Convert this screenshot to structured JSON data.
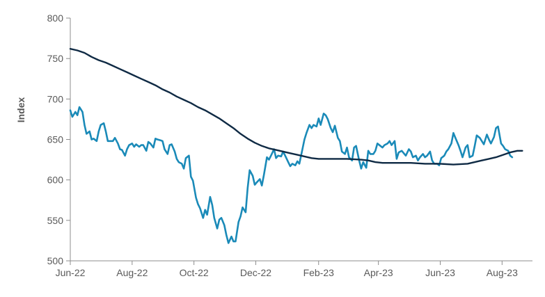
{
  "chart_data": {
    "type": "line",
    "title": "",
    "xlabel": "",
    "ylabel": "Index",
    "ylim": [
      500,
      800
    ],
    "yticks": [
      "500",
      "550",
      "600",
      "650",
      "700",
      "750",
      "800"
    ],
    "xticks": [
      "Jun-22",
      "Aug-22",
      "Oct-22",
      "Dec-22",
      "Feb-23",
      "Apr-23",
      "Jun-23",
      "Aug-23"
    ],
    "x_range": [
      "2022-06-01",
      "2023-08-31"
    ],
    "grid": false,
    "legend": "none",
    "series": [
      {
        "color": "#1a8ab8",
        "points": [
          [
            "2022-06-01",
            686
          ],
          [
            "2022-06-03",
            678
          ],
          [
            "2022-06-06",
            684
          ],
          [
            "2022-06-08",
            680
          ],
          [
            "2022-06-10",
            690
          ],
          [
            "2022-06-13",
            684
          ],
          [
            "2022-06-15",
            668
          ],
          [
            "2022-06-17",
            657
          ],
          [
            "2022-06-20",
            660
          ],
          [
            "2022-06-22",
            650
          ],
          [
            "2022-06-24",
            651
          ],
          [
            "2022-06-27",
            648
          ],
          [
            "2022-06-29",
            660
          ],
          [
            "2022-07-01",
            668
          ],
          [
            "2022-07-04",
            670
          ],
          [
            "2022-07-06",
            660
          ],
          [
            "2022-07-08",
            648
          ],
          [
            "2022-07-11",
            648
          ],
          [
            "2022-07-13",
            648
          ],
          [
            "2022-07-15",
            652
          ],
          [
            "2022-07-18",
            645
          ],
          [
            "2022-07-20",
            638
          ],
          [
            "2022-07-22",
            637
          ],
          [
            "2022-07-25",
            630
          ],
          [
            "2022-07-27",
            638
          ],
          [
            "2022-07-29",
            643
          ],
          [
            "2022-08-01",
            645
          ],
          [
            "2022-08-03",
            641
          ],
          [
            "2022-08-05",
            644
          ],
          [
            "2022-08-08",
            641
          ],
          [
            "2022-08-10",
            643
          ],
          [
            "2022-08-12",
            643
          ],
          [
            "2022-08-15",
            636
          ],
          [
            "2022-08-17",
            647
          ],
          [
            "2022-08-19",
            645
          ],
          [
            "2022-08-22",
            640
          ],
          [
            "2022-08-24",
            651
          ],
          [
            "2022-08-26",
            650
          ],
          [
            "2022-08-29",
            649
          ],
          [
            "2022-08-31",
            648
          ],
          [
            "2022-09-02",
            638
          ],
          [
            "2022-09-05",
            632
          ],
          [
            "2022-09-07",
            643
          ],
          [
            "2022-09-09",
            644
          ],
          [
            "2022-09-12",
            635
          ],
          [
            "2022-09-14",
            626
          ],
          [
            "2022-09-16",
            622
          ],
          [
            "2022-09-19",
            620
          ],
          [
            "2022-09-21",
            614
          ],
          [
            "2022-09-23",
            627
          ],
          [
            "2022-09-26",
            630
          ],
          [
            "2022-09-28",
            604
          ],
          [
            "2022-09-30",
            599
          ],
          [
            "2022-10-03",
            578
          ],
          [
            "2022-10-05",
            570
          ],
          [
            "2022-10-07",
            565
          ],
          [
            "2022-10-10",
            553
          ],
          [
            "2022-10-12",
            563
          ],
          [
            "2022-10-14",
            557
          ],
          [
            "2022-10-17",
            579
          ],
          [
            "2022-10-19",
            569
          ],
          [
            "2022-10-21",
            553
          ],
          [
            "2022-10-24",
            540
          ],
          [
            "2022-10-26",
            551
          ],
          [
            "2022-10-28",
            553
          ],
          [
            "2022-10-31",
            544
          ],
          [
            "2022-11-02",
            532
          ],
          [
            "2022-11-04",
            522
          ],
          [
            "2022-11-07",
            530
          ],
          [
            "2022-11-09",
            524
          ],
          [
            "2022-11-11",
            524
          ],
          [
            "2022-11-14",
            548
          ],
          [
            "2022-11-16",
            555
          ],
          [
            "2022-11-18",
            566
          ],
          [
            "2022-11-21",
            560
          ],
          [
            "2022-11-23",
            590
          ],
          [
            "2022-11-25",
            612
          ],
          [
            "2022-11-28",
            605
          ],
          [
            "2022-11-30",
            594
          ],
          [
            "2022-12-02",
            597
          ],
          [
            "2022-12-05",
            601
          ],
          [
            "2022-12-07",
            593
          ],
          [
            "2022-12-09",
            606
          ],
          [
            "2022-12-12",
            628
          ],
          [
            "2022-12-14",
            625
          ],
          [
            "2022-12-16",
            630
          ],
          [
            "2022-12-19",
            638
          ],
          [
            "2022-12-21",
            627
          ],
          [
            "2022-12-23",
            630
          ],
          [
            "2022-12-26",
            629
          ],
          [
            "2022-12-28",
            635
          ],
          [
            "2022-12-30",
            630
          ],
          [
            "2023-01-02",
            622
          ],
          [
            "2023-01-04",
            617
          ],
          [
            "2023-01-06",
            620
          ],
          [
            "2023-01-09",
            618
          ],
          [
            "2023-01-11",
            623
          ],
          [
            "2023-01-13",
            620
          ],
          [
            "2023-01-16",
            638
          ],
          [
            "2023-01-18",
            650
          ],
          [
            "2023-01-20",
            658
          ],
          [
            "2023-01-23",
            668
          ],
          [
            "2023-01-25",
            664
          ],
          [
            "2023-01-27",
            668
          ],
          [
            "2023-01-30",
            666
          ],
          [
            "2023-02-01",
            676
          ],
          [
            "2023-02-03",
            668
          ],
          [
            "2023-02-06",
            682
          ],
          [
            "2023-02-08",
            680
          ],
          [
            "2023-02-10",
            675
          ],
          [
            "2023-02-13",
            664
          ],
          [
            "2023-02-15",
            659
          ],
          [
            "2023-02-17",
            667
          ],
          [
            "2023-02-20",
            652
          ],
          [
            "2023-02-22",
            648
          ],
          [
            "2023-02-24",
            635
          ],
          [
            "2023-02-27",
            632
          ],
          [
            "2023-03-01",
            640
          ],
          [
            "2023-03-03",
            628
          ],
          [
            "2023-03-06",
            624
          ],
          [
            "2023-03-08",
            640
          ],
          [
            "2023-03-10",
            642
          ],
          [
            "2023-03-13",
            624
          ],
          [
            "2023-03-15",
            614
          ],
          [
            "2023-03-17",
            622
          ],
          [
            "2023-03-20",
            615
          ],
          [
            "2023-03-22",
            636
          ],
          [
            "2023-03-24",
            632
          ],
          [
            "2023-03-27",
            632
          ],
          [
            "2023-03-29",
            636
          ],
          [
            "2023-03-31",
            645
          ],
          [
            "2023-04-03",
            642
          ],
          [
            "2023-04-05",
            640
          ],
          [
            "2023-04-07",
            643
          ],
          [
            "2023-04-10",
            645
          ],
          [
            "2023-04-12",
            648
          ],
          [
            "2023-04-14",
            643
          ],
          [
            "2023-04-17",
            648
          ],
          [
            "2023-04-19",
            626
          ],
          [
            "2023-04-21",
            634
          ],
          [
            "2023-04-24",
            636
          ],
          [
            "2023-04-26",
            633
          ],
          [
            "2023-04-28",
            630
          ],
          [
            "2023-05-01",
            638
          ],
          [
            "2023-05-03",
            635
          ],
          [
            "2023-05-05",
            628
          ],
          [
            "2023-05-08",
            630
          ],
          [
            "2023-05-10",
            624
          ],
          [
            "2023-05-12",
            628
          ],
          [
            "2023-05-15",
            632
          ],
          [
            "2023-05-17",
            628
          ],
          [
            "2023-05-19",
            630
          ],
          [
            "2023-05-22",
            635
          ],
          [
            "2023-05-24",
            624
          ],
          [
            "2023-05-26",
            620
          ],
          [
            "2023-05-29",
            620
          ],
          [
            "2023-05-31",
            618
          ],
          [
            "2023-06-02",
            627
          ],
          [
            "2023-06-05",
            630
          ],
          [
            "2023-06-07",
            635
          ],
          [
            "2023-06-09",
            638
          ],
          [
            "2023-06-12",
            645
          ],
          [
            "2023-06-14",
            658
          ],
          [
            "2023-06-16",
            652
          ],
          [
            "2023-06-19",
            643
          ],
          [
            "2023-06-21",
            636
          ],
          [
            "2023-06-23",
            628
          ],
          [
            "2023-06-26",
            640
          ],
          [
            "2023-06-28",
            643
          ],
          [
            "2023-06-30",
            628
          ],
          [
            "2023-07-03",
            630
          ],
          [
            "2023-07-05",
            642
          ],
          [
            "2023-07-07",
            655
          ],
          [
            "2023-07-10",
            652
          ],
          [
            "2023-07-12",
            648
          ],
          [
            "2023-07-14",
            644
          ],
          [
            "2023-07-17",
            656
          ],
          [
            "2023-07-19",
            650
          ],
          [
            "2023-07-21",
            645
          ],
          [
            "2023-07-24",
            653
          ],
          [
            "2023-07-26",
            664
          ],
          [
            "2023-07-28",
            666
          ],
          [
            "2023-07-31",
            645
          ],
          [
            "2023-08-02",
            642
          ],
          [
            "2023-08-04",
            638
          ],
          [
            "2023-08-07",
            636
          ],
          [
            "2023-08-09",
            630
          ],
          [
            "2023-08-11",
            628
          ]
        ]
      },
      {
        "color": "#0f2a44",
        "points": [
          [
            "2022-06-01",
            762
          ],
          [
            "2022-06-08",
            760
          ],
          [
            "2022-06-15",
            757
          ],
          [
            "2022-06-22",
            752
          ],
          [
            "2022-06-29",
            748
          ],
          [
            "2022-07-06",
            745
          ],
          [
            "2022-07-13",
            741
          ],
          [
            "2022-07-20",
            737
          ],
          [
            "2022-07-27",
            733
          ],
          [
            "2022-08-03",
            729
          ],
          [
            "2022-08-10",
            725
          ],
          [
            "2022-08-17",
            721
          ],
          [
            "2022-08-24",
            717
          ],
          [
            "2022-08-31",
            712
          ],
          [
            "2022-09-07",
            708
          ],
          [
            "2022-09-14",
            703
          ],
          [
            "2022-09-21",
            699
          ],
          [
            "2022-09-28",
            695
          ],
          [
            "2022-10-05",
            690
          ],
          [
            "2022-10-12",
            686
          ],
          [
            "2022-10-19",
            681
          ],
          [
            "2022-10-26",
            676
          ],
          [
            "2022-11-02",
            670
          ],
          [
            "2022-11-09",
            664
          ],
          [
            "2022-11-16",
            657
          ],
          [
            "2022-11-23",
            651
          ],
          [
            "2022-11-30",
            646
          ],
          [
            "2022-12-07",
            642
          ],
          [
            "2022-12-14",
            639
          ],
          [
            "2022-12-21",
            637
          ],
          [
            "2022-12-28",
            635
          ],
          [
            "2023-01-04",
            633
          ],
          [
            "2023-01-11",
            631
          ],
          [
            "2023-01-18",
            629
          ],
          [
            "2023-01-25",
            627
          ],
          [
            "2023-02-01",
            626
          ],
          [
            "2023-02-15",
            626
          ],
          [
            "2023-03-01",
            626
          ],
          [
            "2023-03-15",
            625
          ],
          [
            "2023-03-22",
            624
          ],
          [
            "2023-03-29",
            622
          ],
          [
            "2023-04-05",
            621
          ],
          [
            "2023-04-19",
            621
          ],
          [
            "2023-05-03",
            621
          ],
          [
            "2023-05-17",
            620
          ],
          [
            "2023-05-31",
            620
          ],
          [
            "2023-06-14",
            619
          ],
          [
            "2023-06-28",
            620
          ],
          [
            "2023-07-05",
            622
          ],
          [
            "2023-07-12",
            624
          ],
          [
            "2023-07-19",
            626
          ],
          [
            "2023-07-26",
            628
          ],
          [
            "2023-08-02",
            631
          ],
          [
            "2023-08-09",
            634
          ],
          [
            "2023-08-16",
            636
          ],
          [
            "2023-08-21",
            636
          ]
        ]
      }
    ]
  }
}
